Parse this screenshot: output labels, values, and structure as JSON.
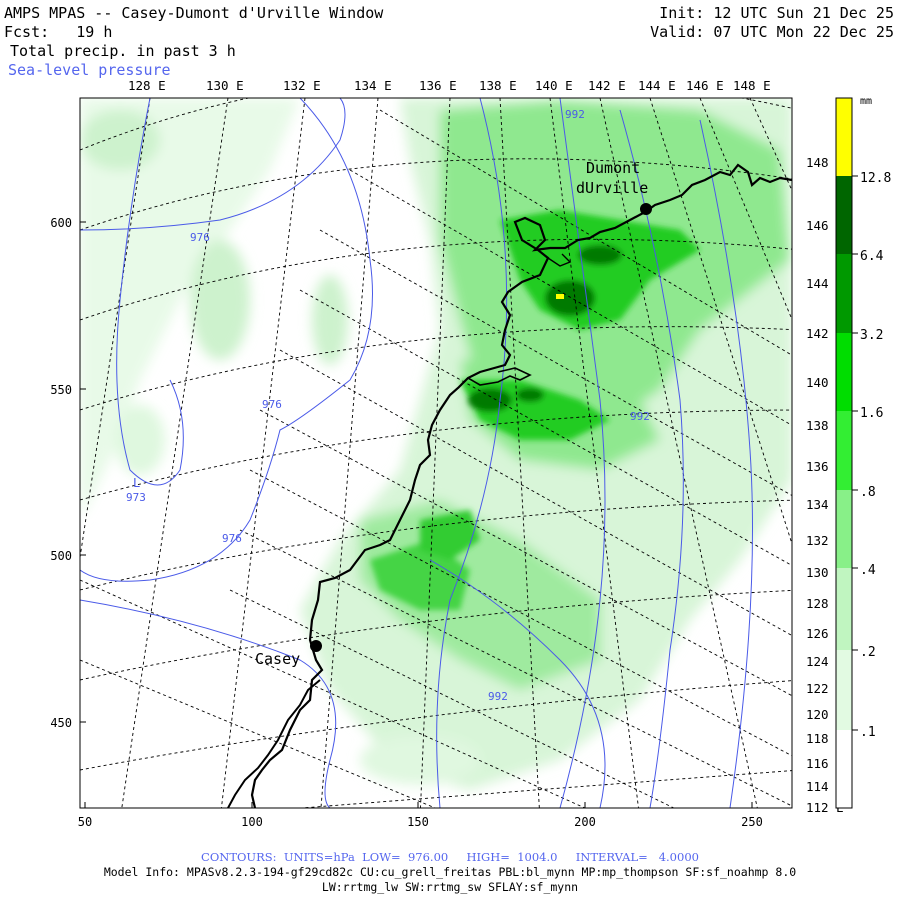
{
  "header": {
    "title": "AMPS MPAS -- Casey-Dumont d'Urville Window",
    "forecast": "Fcst:   19 h",
    "field": "Total precip. in past 3 h",
    "contour_field": "Sea-level pressure",
    "init": "Init: 12 UTC Sun 21 Dec 25",
    "valid": "Valid: 07 UTC Mon 22 Dec 25"
  },
  "map": {
    "top_lon_labels": [
      "128 E",
      "130 E",
      "132 E",
      "134 E",
      "136 E",
      "138 E",
      "140 E",
      "142 E",
      "144 E",
      "146 E",
      "148 E"
    ],
    "right_lon_labels": [
      "148 E",
      "146 E",
      "144 E",
      "142 E",
      "140 E",
      "138 E",
      "136 E",
      "134 E",
      "132 E",
      "130 E",
      "128 E",
      "126 E",
      "124 E",
      "122 E",
      "120 E",
      "118 E",
      "116 E",
      "114 E",
      "112 E"
    ],
    "left_axis": [
      "600",
      "550",
      "500",
      "450"
    ],
    "bottom_axis": [
      "50",
      "100",
      "150",
      "200",
      "250"
    ],
    "stations": [
      {
        "name": "Dumont",
        "name2": "dUrville"
      },
      {
        "name": "Casey"
      }
    ],
    "low_marker": "L",
    "low_value": "973",
    "isobar_labels": [
      "976",
      "976",
      "976",
      "992",
      "992",
      "992"
    ]
  },
  "colorbar": {
    "unit": "mm",
    "labels": [
      "12.8",
      "6.4",
      "3.2",
      "1.6",
      ".8",
      ".4",
      ".2",
      ".1"
    ],
    "colors": [
      "#ffff00",
      "#006600",
      "#009900",
      "#00cc00",
      "#22ee22",
      "#88f088",
      "#c0f5c0",
      "#e2fae2",
      "#ffffff"
    ]
  },
  "footer": {
    "contours": "CONTOURS:  UNITS=hPa  LOW=  976.00     HIGH=  1004.0     INTERVAL=   4.0000",
    "model_info": "Model Info: MPASv8.2.3-194-gf29cd82c CU:cu_grell_freitas PBL:bl_mynn MP:mp_thompson SF:sf_noahmp 8.0",
    "model_info2": "LW:rrtmg_lw SW:rrtmg_sw SFLAY:sf_mynn"
  }
}
